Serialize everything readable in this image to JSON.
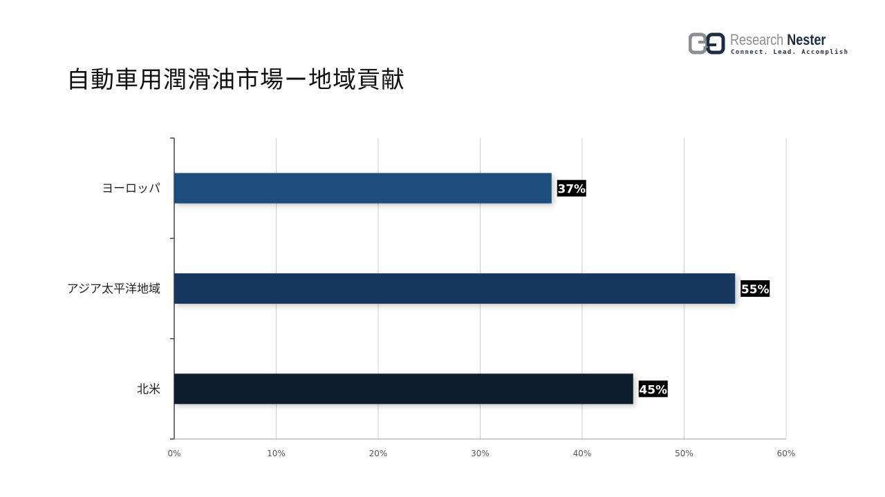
{
  "title": "自動車用潤滑油市場ー地域貢献",
  "logo": {
    "name_part1": "Research",
    "name_part2": "Nester",
    "tagline": "Connect. Lead. Accomplish"
  },
  "chart_data": {
    "type": "bar",
    "orientation": "horizontal",
    "categories": [
      "ヨーロッパ",
      "アジア太平洋地域",
      "北米"
    ],
    "values": [
      37,
      55,
      45
    ],
    "value_labels": [
      "37%",
      "55%",
      "45%"
    ],
    "colors": [
      "#1f4e7d",
      "#17375e",
      "#0f1f2e"
    ],
    "xlim": [
      0,
      60
    ],
    "xticks": [
      0,
      10,
      20,
      30,
      40,
      50,
      60
    ],
    "xtick_labels": [
      "0%",
      "10%",
      "20%",
      "30%",
      "40%",
      "50%",
      "60%"
    ],
    "grid": "vertical",
    "legend": "none"
  }
}
